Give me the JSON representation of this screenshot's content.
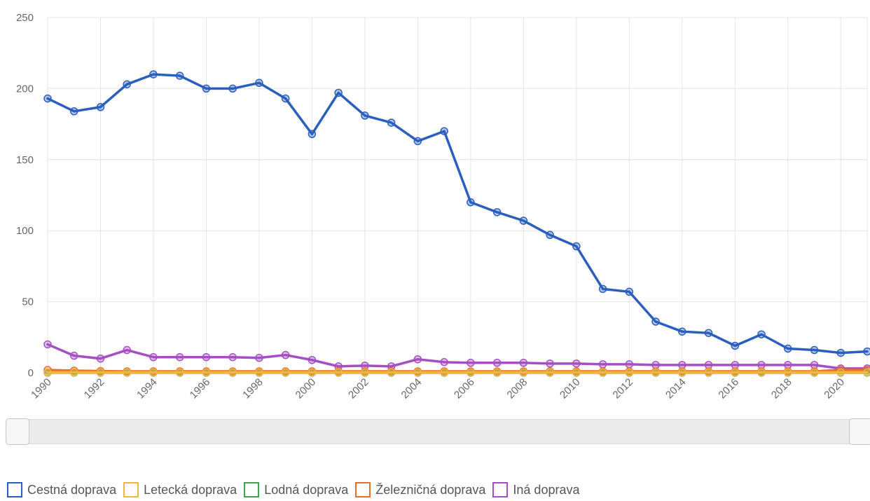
{
  "chart_data": {
    "type": "line",
    "x": [
      "1990",
      "1991",
      "1992",
      "1993",
      "1994",
      "1995",
      "1996",
      "1997",
      "1998",
      "1999",
      "2000",
      "2001",
      "2002",
      "2003",
      "2004",
      "2005",
      "2006",
      "2007",
      "2008",
      "2009",
      "2010",
      "2011",
      "2012",
      "2013",
      "2014",
      "2015",
      "2016",
      "2017",
      "2018",
      "2019",
      "2020",
      "2021"
    ],
    "x_tick_labels": [
      "1990",
      "1992",
      "1994",
      "1996",
      "1998",
      "2000",
      "2002",
      "2004",
      "2006",
      "2008",
      "2010",
      "2012",
      "2014",
      "2016",
      "2018",
      "2020"
    ],
    "y_tick_labels": [
      "250",
      "200",
      "150",
      "100",
      "50",
      "0"
    ],
    "ylim": [
      0,
      250
    ],
    "grid": true,
    "legend_position": "bottom",
    "series": [
      {
        "name": "Cestná doprava",
        "color": "#2b5fbd",
        "values": [
          193,
          184,
          187,
          203,
          210,
          209,
          200,
          200,
          204,
          193,
          168,
          197,
          181,
          176,
          163,
          170,
          120,
          113,
          107,
          97,
          89,
          59,
          57,
          36,
          29,
          28,
          19,
          27,
          17,
          16,
          14,
          15
        ]
      },
      {
        "name": "Letecká doprava",
        "color": "#f0b63c",
        "values": [
          0.3,
          0.3,
          0.3,
          0.3,
          0.3,
          0.3,
          0.3,
          0.3,
          0.3,
          0.3,
          0.3,
          0.3,
          0.3,
          0.3,
          0.3,
          0.3,
          0.3,
          0.3,
          0.3,
          0.3,
          0.3,
          0.3,
          0.3,
          0.3,
          0.3,
          0.3,
          0.3,
          0.3,
          0.3,
          0.3,
          0.3,
          0.3
        ]
      },
      {
        "name": "Lodná doprava",
        "color": "#3aa655",
        "values": [
          0.1,
          0.1,
          0.1,
          0.1,
          0.1,
          0.1,
          0.1,
          0.1,
          0.1,
          0.1,
          0.1,
          0.1,
          0.1,
          0.1,
          0.1,
          0.1,
          0.1,
          0.1,
          0.1,
          0.1,
          0.1,
          0.1,
          0.1,
          0.1,
          0.1,
          0.1,
          0.1,
          0.1,
          0.1,
          0.1,
          0.1,
          0.1
        ]
      },
      {
        "name": "Železničná doprava",
        "color": "#e86e2c",
        "values": [
          2,
          1.5,
          1.2,
          1,
          1,
          1,
          1,
          1,
          1,
          1,
          1,
          1,
          1,
          1,
          1,
          1,
          1,
          1,
          1,
          1,
          1,
          1,
          1,
          1,
          1,
          1,
          1,
          1,
          1,
          1,
          2,
          2
        ]
      },
      {
        "name": "Iná doprava",
        "color": "#a64fc4",
        "values": [
          20,
          12,
          10,
          16,
          11,
          11,
          11,
          11,
          10.5,
          12.5,
          9,
          4.5,
          5,
          4.5,
          9.5,
          7.5,
          7,
          7,
          7,
          6.5,
          6.5,
          6,
          6,
          5.5,
          5.5,
          5.5,
          5.5,
          5.5,
          5.5,
          5.5,
          3,
          3
        ]
      }
    ]
  }
}
